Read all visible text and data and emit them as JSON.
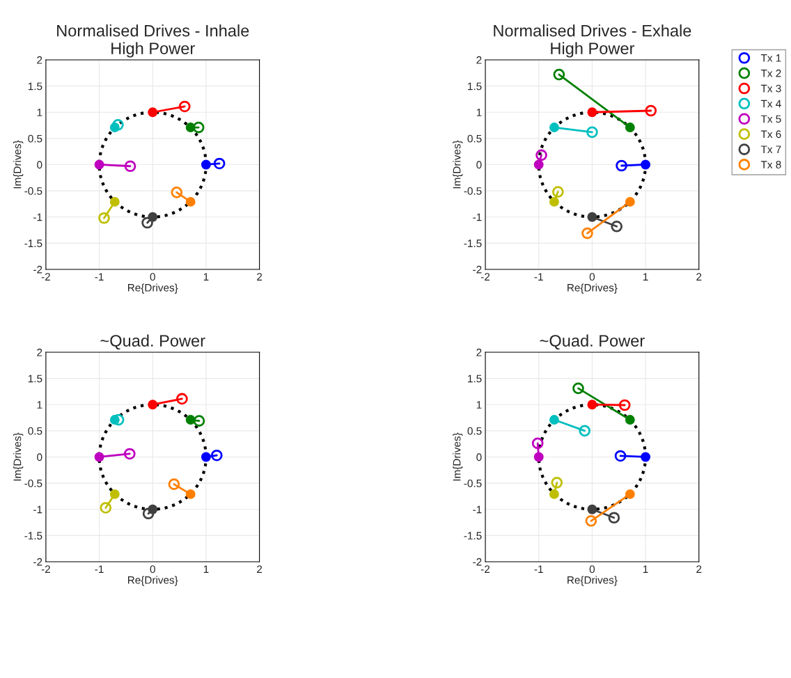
{
  "chart_data": [
    {
      "type": "line",
      "title": "Normalised Drives - Inhale\nHigh Power",
      "xlabel": "Re{Drives}",
      "ylabel": "Im{Drives}",
      "xlim": [
        -2,
        2
      ],
      "ylim": [
        -2,
        2
      ],
      "xticks": [
        -2,
        -1,
        0,
        1,
        2
      ],
      "yticks": [
        -2,
        -1.5,
        -1,
        -0.5,
        0,
        0.5,
        1,
        1.5,
        2
      ],
      "grid": true,
      "legend": false,
      "marker": "circle",
      "series": [
        {
          "color": "#0000ff",
          "x": [
            1,
            1.25
          ],
          "values": [
            0,
            0.02
          ]
        },
        {
          "color": "#008000",
          "x": [
            0.71,
            0.86
          ],
          "values": [
            0.71,
            0.71
          ]
        },
        {
          "color": "#ff0000",
          "x": [
            0,
            0.6
          ],
          "values": [
            1,
            1.11
          ]
        },
        {
          "color": "#00bfbf",
          "x": [
            -0.71,
            -0.65
          ],
          "values": [
            0.71,
            0.76
          ]
        },
        {
          "color": "#bf00bf",
          "x": [
            -1,
            -0.42
          ],
          "values": [
            0,
            -0.03
          ]
        },
        {
          "color": "#bfbf00",
          "x": [
            -0.71,
            -0.91
          ],
          "values": [
            -0.71,
            -1.02
          ]
        },
        {
          "color": "#404040",
          "x": [
            0,
            -0.1
          ],
          "values": [
            -1,
            -1.11
          ]
        },
        {
          "color": "#ff8000",
          "x": [
            0.71,
            0.45
          ],
          "values": [
            -0.71,
            -0.53
          ]
        }
      ]
    },
    {
      "type": "line",
      "title": "~Quad. Power",
      "xlabel": "Re{Drives}",
      "ylabel": "Im{Drives}",
      "xlim": [
        -2,
        2
      ],
      "ylim": [
        -2,
        2
      ],
      "xticks": [
        -2,
        -1,
        0,
        1,
        2
      ],
      "yticks": [
        -2,
        -1.5,
        -1,
        -0.5,
        0,
        0.5,
        1,
        1.5,
        2
      ],
      "grid": true,
      "legend": false,
      "marker": "circle",
      "series": [
        {
          "color": "#0000ff",
          "x": [
            1,
            1.2
          ],
          "values": [
            0,
            0.03
          ]
        },
        {
          "color": "#008000",
          "x": [
            0.71,
            0.87
          ],
          "values": [
            0.71,
            0.69
          ]
        },
        {
          "color": "#ff0000",
          "x": [
            0,
            0.55
          ],
          "values": [
            1,
            1.11
          ]
        },
        {
          "color": "#00bfbf",
          "x": [
            -0.71,
            -0.64
          ],
          "values": [
            0.71,
            0.71
          ]
        },
        {
          "color": "#bf00bf",
          "x": [
            -1,
            -0.43
          ],
          "values": [
            0,
            0.06
          ]
        },
        {
          "color": "#bfbf00",
          "x": [
            -0.71,
            -0.88
          ],
          "values": [
            -0.71,
            -0.97
          ]
        },
        {
          "color": "#404040",
          "x": [
            0,
            -0.08
          ],
          "values": [
            -1,
            -1.08
          ]
        },
        {
          "color": "#ff8000",
          "x": [
            0.71,
            0.4
          ],
          "values": [
            -0.71,
            -0.52
          ]
        }
      ]
    },
    {
      "type": "line",
      "title": "Normalised Drives - Exhale\nHigh Power",
      "xlabel": "Re{Drives}",
      "ylabel": "Im{Drives}",
      "xlim": [
        -2,
        2
      ],
      "ylim": [
        -2,
        2
      ],
      "xticks": [
        -2,
        -1,
        0,
        1,
        2
      ],
      "yticks": [
        -2,
        -1.5,
        -1,
        -0.5,
        0,
        0.5,
        1,
        1.5,
        2
      ],
      "grid": true,
      "legend": "right",
      "marker": "circle",
      "series": [
        {
          "name": "Tx 1",
          "color": "#0000ff",
          "x": [
            1,
            0.55
          ],
          "values": [
            0,
            -0.02
          ]
        },
        {
          "name": "Tx 2",
          "color": "#008000",
          "x": [
            0.71,
            -0.62
          ],
          "values": [
            0.71,
            1.72
          ]
        },
        {
          "name": "Tx 3",
          "color": "#ff0000",
          "x": [
            0,
            1.1
          ],
          "values": [
            1,
            1.03
          ]
        },
        {
          "name": "Tx 4",
          "color": "#00bfbf",
          "x": [
            -0.71,
            0
          ],
          "values": [
            0.71,
            0.62
          ]
        },
        {
          "name": "Tx 5",
          "color": "#bf00bf",
          "x": [
            -1,
            -0.95
          ],
          "values": [
            0,
            0.18
          ]
        },
        {
          "name": "Tx 6",
          "color": "#bfbf00",
          "x": [
            -0.71,
            -0.64
          ],
          "values": [
            -0.71,
            -0.52
          ]
        },
        {
          "name": "Tx 7",
          "color": "#404040",
          "x": [
            0,
            0.46
          ],
          "values": [
            -1,
            -1.18
          ]
        },
        {
          "name": "Tx 8",
          "color": "#ff8000",
          "x": [
            0.71,
            -0.09
          ],
          "values": [
            -0.71,
            -1.31
          ]
        }
      ]
    },
    {
      "type": "line",
      "title": "~Quad. Power",
      "xlabel": "Re{Drives}",
      "ylabel": "Im{Drives}",
      "xlim": [
        -2,
        2
      ],
      "ylim": [
        -2,
        2
      ],
      "xticks": [
        -2,
        -1,
        0,
        1,
        2
      ],
      "yticks": [
        -2,
        -1.5,
        -1,
        -0.5,
        0,
        0.5,
        1,
        1.5,
        2
      ],
      "grid": true,
      "legend": false,
      "marker": "circle",
      "series": [
        {
          "color": "#0000ff",
          "x": [
            1,
            0.53
          ],
          "values": [
            0,
            0.02
          ]
        },
        {
          "color": "#008000",
          "x": [
            0.71,
            -0.26
          ],
          "values": [
            0.71,
            1.31
          ]
        },
        {
          "color": "#ff0000",
          "x": [
            0,
            0.61
          ],
          "values": [
            1,
            0.99
          ]
        },
        {
          "color": "#00bfbf",
          "x": [
            -0.71,
            -0.14
          ],
          "values": [
            0.71,
            0.5
          ]
        },
        {
          "color": "#bf00bf",
          "x": [
            -1,
            -1.02
          ],
          "values": [
            0,
            0.26
          ]
        },
        {
          "color": "#bfbf00",
          "x": [
            -0.71,
            -0.66
          ],
          "values": [
            -0.71,
            -0.49
          ]
        },
        {
          "color": "#404040",
          "x": [
            0,
            0.41
          ],
          "values": [
            -1,
            -1.16
          ]
        },
        {
          "color": "#ff8000",
          "x": [
            0.71,
            -0.02
          ],
          "values": [
            -0.71,
            -1.22
          ]
        }
      ]
    }
  ]
}
